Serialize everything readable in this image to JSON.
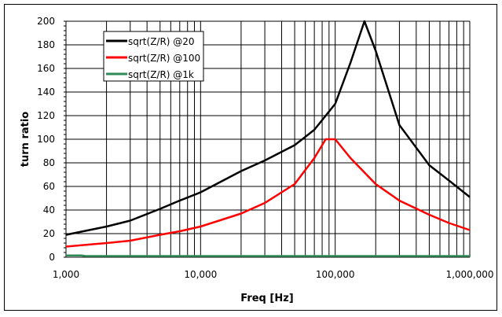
{
  "chart_data": {
    "type": "line",
    "title": "",
    "xlabel": "Freq [Hz]",
    "ylabel": "turn ratio",
    "xscale": "log",
    "xlim": [
      1000,
      1000000
    ],
    "ylim": [
      0,
      200
    ],
    "grid": true,
    "legend_position": "top-left",
    "x_ticks": [
      1000,
      10000,
      100000,
      1000000
    ],
    "x_tick_labels": [
      "1,000",
      "10,000",
      "100,000",
      "1,000,000"
    ],
    "y_ticks": [
      0,
      20,
      40,
      60,
      80,
      100,
      120,
      140,
      160,
      180,
      200
    ],
    "y_tick_labels": [
      "0",
      "20",
      "40",
      "60",
      "80",
      "100",
      "120",
      "140",
      "160",
      "180",
      "200"
    ],
    "series": [
      {
        "name": "sqrt(Z/R) @20",
        "color": "#000000",
        "x": [
          1000,
          2000,
          3000,
          5000,
          7000,
          10000,
          20000,
          30000,
          50000,
          70000,
          100000,
          130000,
          165000,
          200000,
          300000,
          500000,
          700000,
          1000000
        ],
        "y": [
          19,
          26,
          31,
          41,
          48,
          55,
          73,
          82,
          95,
          108,
          130,
          165,
          200,
          175,
          112,
          78,
          65,
          51
        ]
      },
      {
        "name": "sqrt(Z/R) @100",
        "color": "#ff0000",
        "x": [
          1000,
          2000,
          3000,
          5000,
          7000,
          10000,
          20000,
          30000,
          50000,
          70000,
          85000,
          100000,
          130000,
          200000,
          300000,
          500000,
          700000,
          1000000
        ],
        "y": [
          9,
          12,
          14,
          19,
          22,
          26,
          37,
          46,
          62,
          84,
          100,
          100,
          84,
          62,
          48,
          36,
          29,
          23
        ]
      },
      {
        "name": "sqrt(Z/R) @1k",
        "color": "#2e8b57",
        "x": [
          1000,
          1300,
          1400,
          10000,
          100000,
          1000000
        ],
        "y": [
          1.5,
          1.5,
          1,
          1,
          1,
          1
        ]
      }
    ]
  }
}
